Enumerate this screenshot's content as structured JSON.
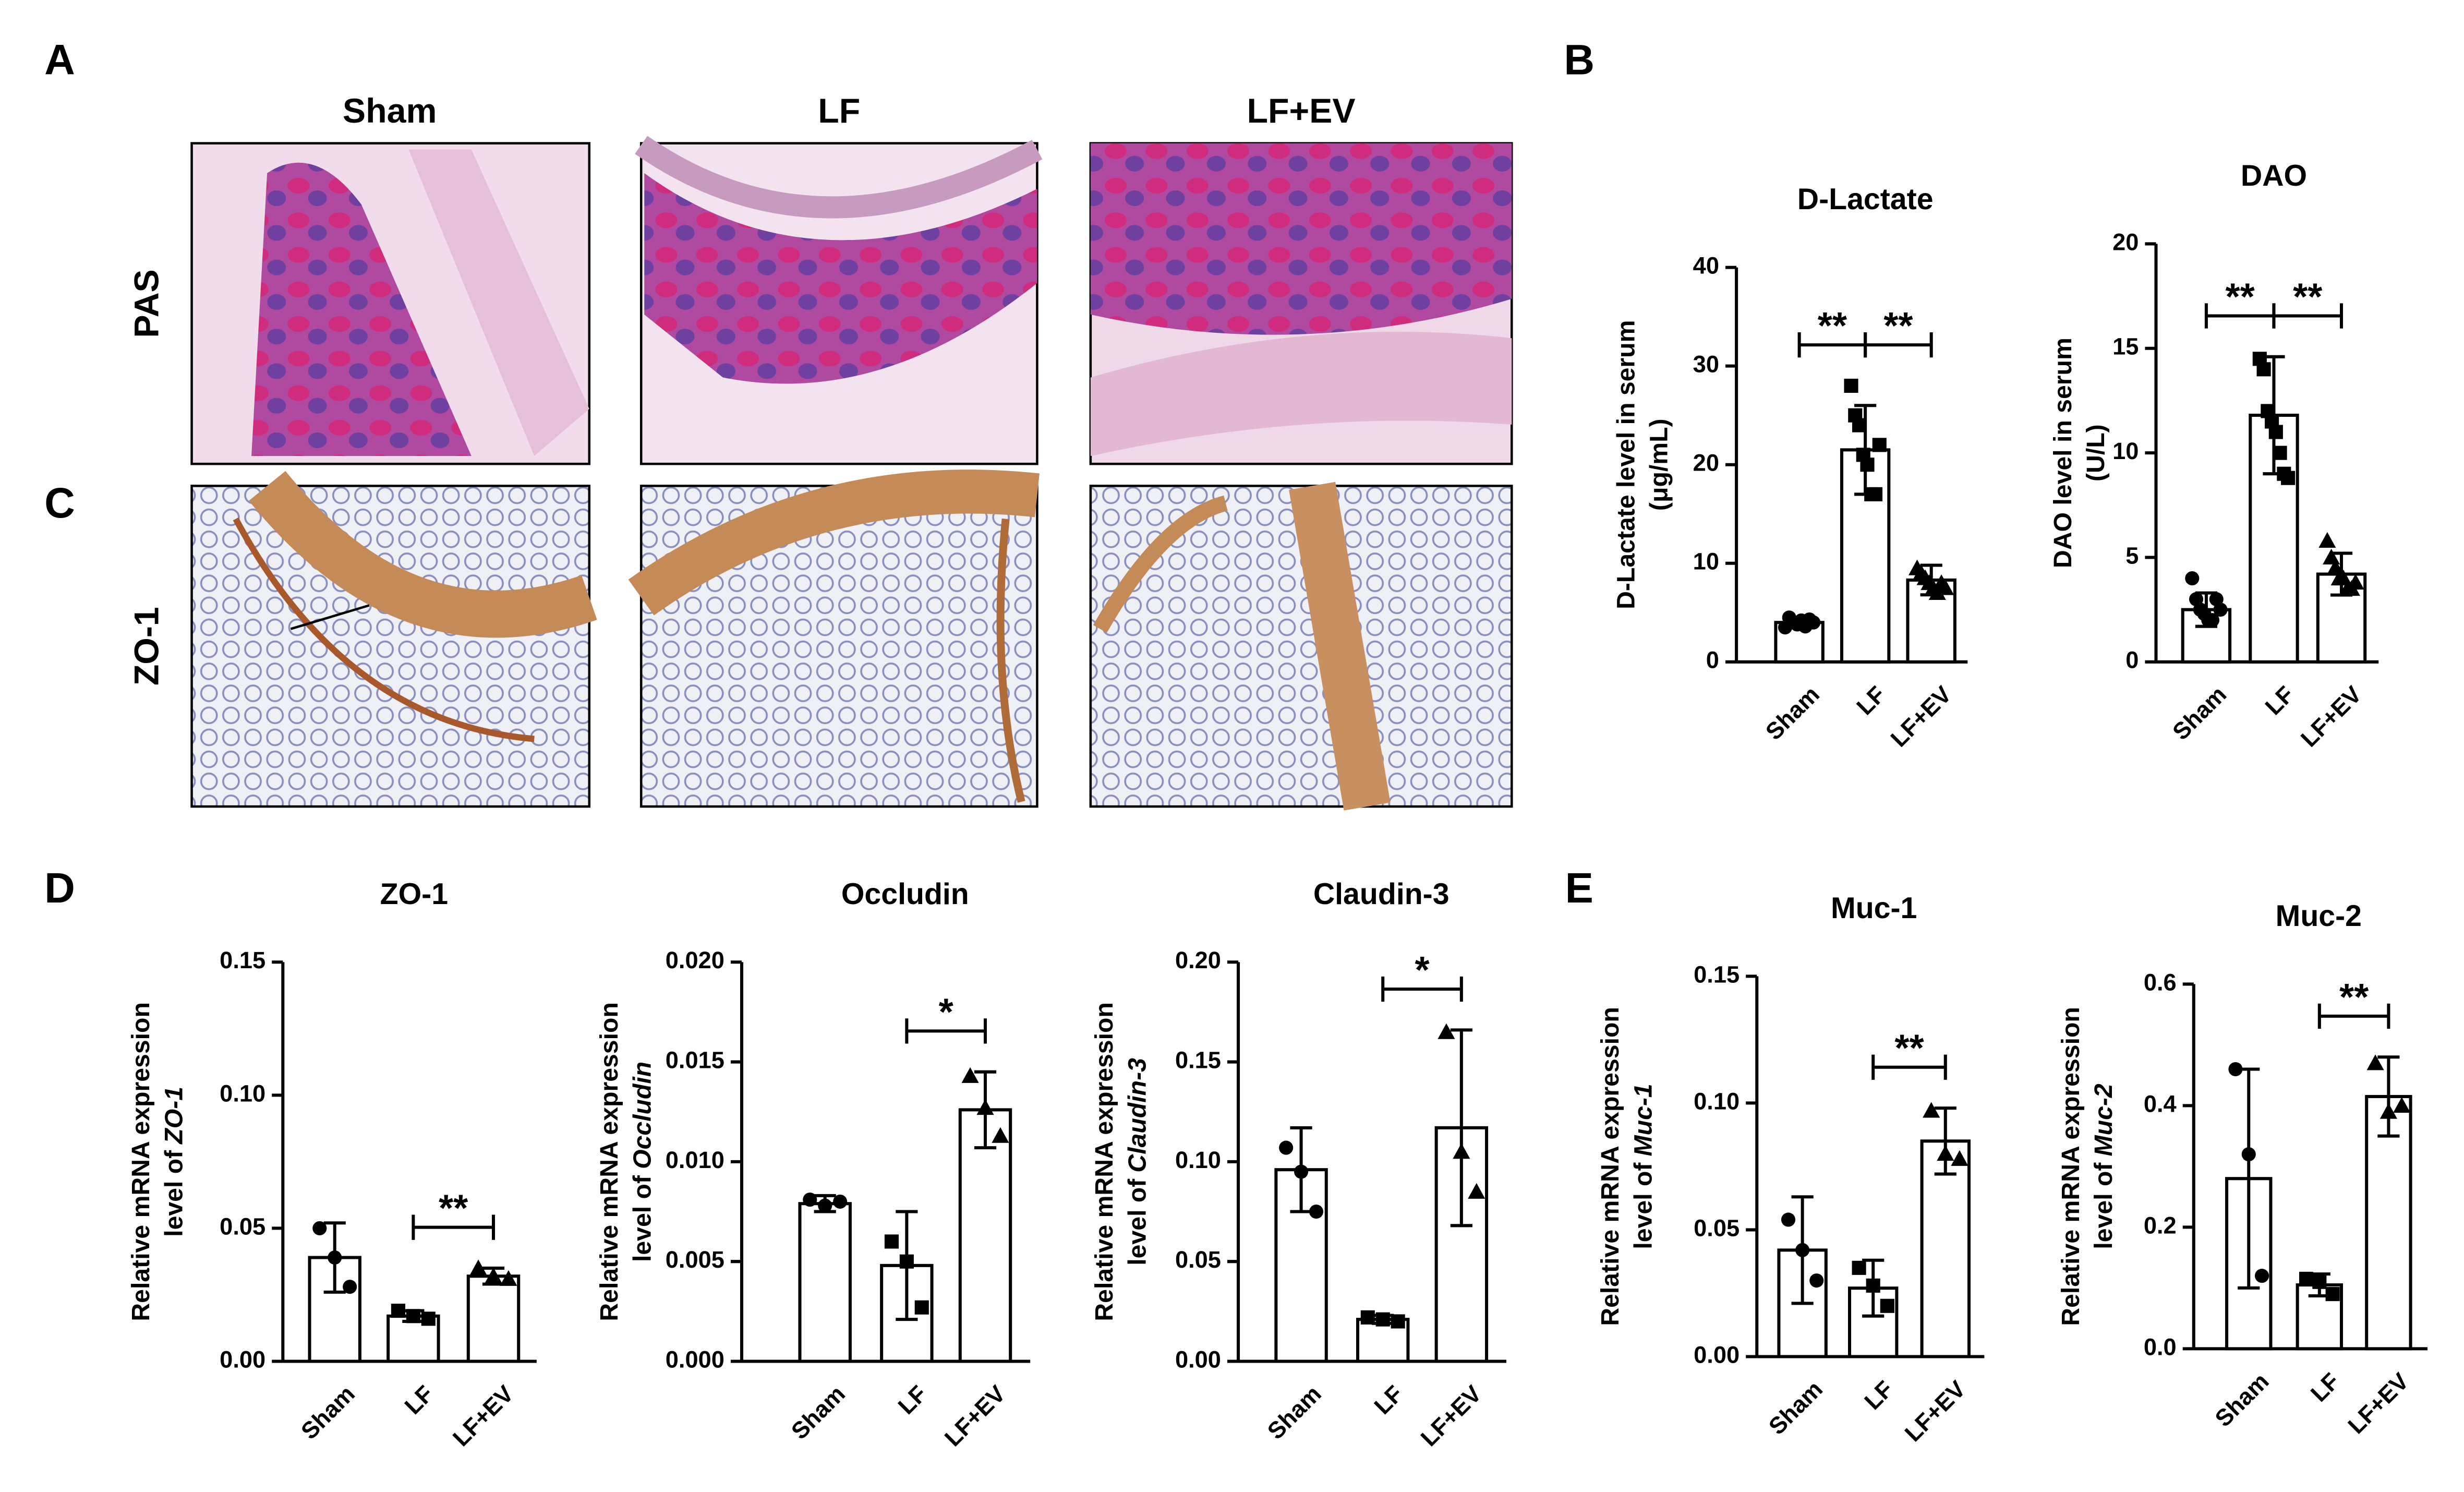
{
  "panel_labels": [
    "A",
    "B",
    "C",
    "D",
    "E"
  ],
  "histology": {
    "columns": [
      "Sham",
      "LF",
      "LF+EV"
    ],
    "rows": [
      "PAS",
      "ZO-1"
    ]
  },
  "chart_data": [
    {
      "type": "bar",
      "title": "D-Lactate",
      "y_label": [
        "D-Lactate level in serum",
        "(μg/mL)"
      ],
      "categories": [
        "Sham",
        "LF",
        "LF+EV"
      ],
      "values": [
        4.0,
        21.5,
        8.3
      ],
      "errors": [
        0.5,
        4.5,
        1.5
      ],
      "points": [
        [
          3.5,
          4.5,
          4.0,
          3.8,
          4.2,
          3.6,
          4.3,
          4.0
        ],
        [
          28,
          25,
          24,
          21,
          20,
          17,
          17,
          22
        ],
        [
          9.5,
          9,
          8.5,
          8,
          7.5,
          7,
          8,
          7.5
        ]
      ],
      "markers": [
        "circle",
        "square",
        "triangle"
      ],
      "color": "#ffffff",
      "ylim": [
        0,
        40
      ],
      "yticks": [
        0,
        10,
        20,
        30,
        40
      ],
      "significance": [
        {
          "from": 0,
          "to": 1,
          "label": "**"
        },
        {
          "from": 1,
          "to": 2,
          "label": "**"
        }
      ]
    },
    {
      "type": "bar",
      "title": "DAO",
      "y_label": [
        "DAO level in serum",
        "(U/L)"
      ],
      "categories": [
        "Sham",
        "LF",
        "LF+EV"
      ],
      "values": [
        2.5,
        11.8,
        4.2
      ],
      "errors": [
        0.8,
        2.8,
        1.0
      ],
      "points": [
        [
          4,
          3,
          2.5,
          2.3,
          2,
          2,
          3,
          2.5
        ],
        [
          14.5,
          14,
          12,
          11.5,
          11,
          10,
          9,
          8.8
        ],
        [
          5.8,
          5,
          4.5,
          4,
          4,
          3.5,
          3.5,
          3.8
        ]
      ],
      "markers": [
        "circle",
        "square",
        "triangle"
      ],
      "color": "#ffffff",
      "ylim": [
        0,
        20
      ],
      "yticks": [
        0,
        5,
        10,
        15,
        20
      ],
      "significance": [
        {
          "from": 0,
          "to": 1,
          "label": "**"
        },
        {
          "from": 1,
          "to": 2,
          "label": "**"
        }
      ]
    },
    {
      "type": "bar",
      "title": "ZO-1",
      "y_label": [
        "Relative mRNA expression",
        "level of"
      ],
      "y_label_gene": "ZO-1",
      "categories": [
        "Sham",
        "LF",
        "LF+EV"
      ],
      "values": [
        0.039,
        0.017,
        0.032
      ],
      "errors": [
        0.013,
        0.002,
        0.003
      ],
      "points": [
        [
          0.05,
          0.039,
          0.028
        ],
        [
          0.019,
          0.017,
          0.016
        ],
        [
          0.035,
          0.032,
          0.031
        ]
      ],
      "markers": [
        "circle",
        "square",
        "triangle"
      ],
      "color": "#ffffff",
      "ylim": [
        0,
        0.15
      ],
      "yticks": [
        {
          "value": 0,
          "label": "0.00"
        },
        0.05,
        {
          "value": 0.1,
          "label": "0.10"
        },
        0.15
      ],
      "significance": [
        {
          "from": 1,
          "to": 2,
          "label": "**"
        }
      ]
    },
    {
      "type": "bar",
      "title": "Occludin",
      "y_label": [
        "Relative mRNA expression",
        "level of"
      ],
      "y_label_gene": "Occludin",
      "categories": [
        "Sham",
        "LF",
        "LF+EV"
      ],
      "values": [
        0.0079,
        0.0048,
        0.0126
      ],
      "errors": [
        0.0004,
        0.0027,
        0.0019
      ],
      "points": [
        [
          0.0081,
          0.0078,
          0.008
        ],
        [
          0.006,
          0.005,
          0.0027
        ],
        [
          0.0143,
          0.0127,
          0.0113
        ]
      ],
      "markers": [
        "circle",
        "square",
        "triangle"
      ],
      "color": "#ffffff",
      "ylim": [
        0,
        0.02
      ],
      "yticks": [
        {
          "value": 0,
          "label": "0.000"
        },
        {
          "value": 0.005,
          "label": "0.005"
        },
        {
          "value": 0.01,
          "label": "0.010"
        },
        {
          "value": 0.015,
          "label": "0.015"
        },
        {
          "value": 0.02,
          "label": "0.020"
        }
      ],
      "significance": [
        {
          "from": 1,
          "to": 2,
          "label": "*"
        }
      ]
    },
    {
      "type": "bar",
      "title": "Claudin-3",
      "y_label": [
        "Relative mRNA expression",
        "level of"
      ],
      "y_label_gene": "Claudin-3",
      "categories": [
        "Sham",
        "LF",
        "LF+EV"
      ],
      "values": [
        0.096,
        0.021,
        0.117
      ],
      "errors": [
        0.021,
        0.002,
        0.049
      ],
      "points": [
        [
          0.107,
          0.095,
          0.075
        ],
        [
          0.022,
          0.021,
          0.02
        ],
        [
          0.165,
          0.105,
          0.085
        ]
      ],
      "markers": [
        "circle",
        "square",
        "triangle"
      ],
      "color": "#ffffff",
      "ylim": [
        0,
        0.2
      ],
      "yticks": [
        {
          "value": 0,
          "label": "0.00"
        },
        0.05,
        {
          "value": 0.1,
          "label": "0.10"
        },
        0.15,
        {
          "value": 0.2,
          "label": "0.20"
        }
      ],
      "significance": [
        {
          "from": 1,
          "to": 2,
          "label": "*"
        }
      ]
    },
    {
      "type": "bar",
      "title": "Muc-1",
      "y_label": [
        "Relative mRNA expression",
        "level of"
      ],
      "y_label_gene": "Muc-1",
      "categories": [
        "Sham",
        "LF",
        "LF+EV"
      ],
      "values": [
        0.042,
        0.027,
        0.085
      ],
      "errors": [
        0.021,
        0.011,
        0.013
      ],
      "points": [
        [
          0.054,
          0.042,
          0.03
        ],
        [
          0.035,
          0.028,
          0.02
        ],
        [
          0.097,
          0.08,
          0.078
        ]
      ],
      "markers": [
        "circle",
        "square",
        "triangle"
      ],
      "color": "#ffffff",
      "ylim": [
        0,
        0.15
      ],
      "yticks": [
        {
          "value": 0,
          "label": "0.00"
        },
        0.05,
        {
          "value": 0.1,
          "label": "0.10"
        },
        0.15
      ],
      "significance": [
        {
          "from": 1,
          "to": 2,
          "label": "**"
        }
      ]
    },
    {
      "type": "bar",
      "title": "Muc-2",
      "y_label": [
        "Relative mRNA expression",
        "level of"
      ],
      "y_label_gene": "Muc-2",
      "categories": [
        "Sham",
        "LF",
        "LF+EV"
      ],
      "values": [
        0.28,
        0.105,
        0.415
      ],
      "errors": [
        0.18,
        0.018,
        0.065
      ],
      "points": [
        [
          0.46,
          0.32,
          0.12
        ],
        [
          0.115,
          0.11,
          0.09
        ],
        [
          0.47,
          0.39,
          0.4
        ]
      ],
      "markers": [
        "circle",
        "square",
        "triangle"
      ],
      "color": "#ffffff",
      "ylim": [
        0,
        0.6
      ],
      "yticks": [
        {
          "value": 0,
          "label": "0.0"
        },
        0.2,
        0.4,
        0.6
      ],
      "significance": [
        {
          "from": 1,
          "to": 2,
          "label": "**"
        }
      ]
    }
  ]
}
